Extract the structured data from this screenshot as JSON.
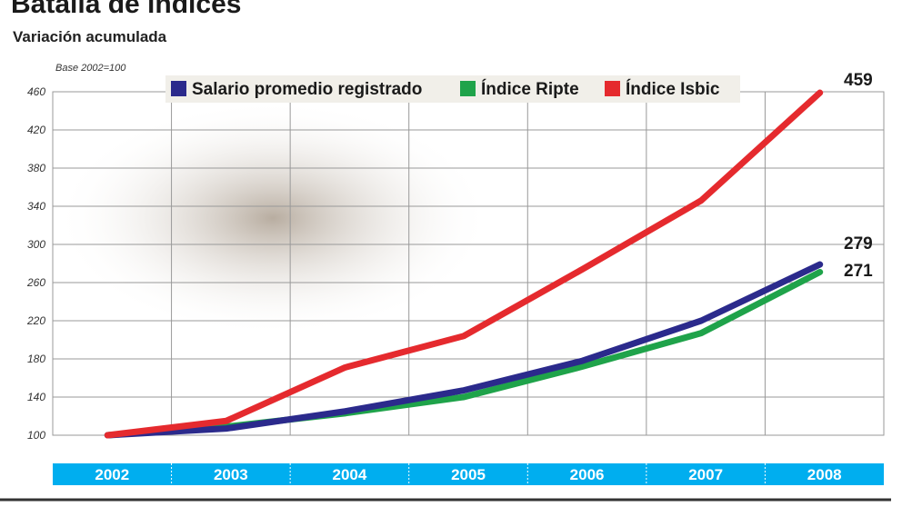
{
  "chart_data": {
    "type": "line",
    "title": "Batalla de índices",
    "subtitle": "Variación acumulada",
    "note": "Base 2002=100",
    "categories": [
      "2002",
      "2003",
      "2004",
      "2005",
      "2006",
      "2007",
      "2008"
    ],
    "ylim": [
      100,
      460
    ],
    "yticks": [
      100,
      140,
      180,
      220,
      260,
      300,
      340,
      380,
      420,
      460
    ],
    "grid": true,
    "legend": "top",
    "series": [
      {
        "name": "Salario promedio registrado",
        "color": "#2b2a8c",
        "values": [
          100,
          107,
          125,
          147,
          178,
          220,
          279
        ],
        "end_label": "279"
      },
      {
        "name": "Índice Ripte",
        "color": "#1fa34a",
        "values": [
          100,
          109,
          123,
          140,
          172,
          207,
          271
        ],
        "end_label": "271"
      },
      {
        "name": "Índice Isbic",
        "color": "#e52a2e",
        "values": [
          100,
          115,
          171,
          204,
          274,
          346,
          459
        ],
        "end_label": "459"
      }
    ],
    "axis_band_color": "#00aeef"
  }
}
